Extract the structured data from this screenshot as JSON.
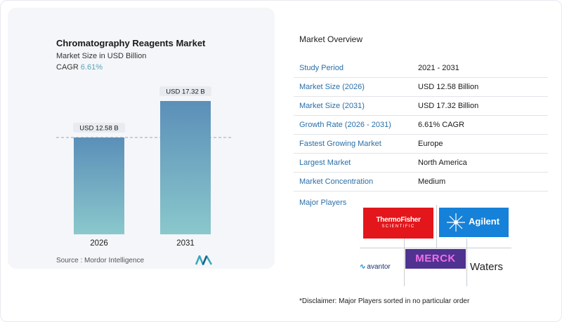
{
  "chart_data": {
    "type": "bar",
    "title": "Chromatography Reagents Market",
    "subtitle": "Market Size in USD Billion",
    "cagr_label": "CAGR",
    "cagr_value": "6.61%",
    "categories": [
      "2026",
      "2031"
    ],
    "values": [
      12.58,
      17.32
    ],
    "data_labels": [
      "USD 12.58 B",
      "USD 17.32 B"
    ],
    "ylim": [
      0,
      17.32
    ],
    "reference_line": 12.58,
    "grid": false,
    "colors": {
      "bar_top": "#5b8fb8",
      "bar_bottom": "#8ac8cc",
      "label_bg": "#e8ebf0",
      "cagr_color": "#5ba4b5"
    }
  },
  "source": "Source :  Mordor Intelligence",
  "overview": {
    "title": "Market Overview",
    "rows": [
      {
        "key": "Study Period",
        "value": "2021 - 2031"
      },
      {
        "key": "Market Size (2026)",
        "value": "USD 12.58 Billion"
      },
      {
        "key": "Market Size (2031)",
        "value": "USD 17.32 Billion"
      },
      {
        "key": "Growth Rate (2026 - 2031)",
        "value": "6.61% CAGR"
      },
      {
        "key": "Fastest Growing Market",
        "value": "Europe"
      },
      {
        "key": "Largest Market",
        "value": "North America"
      },
      {
        "key": "Market Concentration",
        "value": "Medium"
      }
    ],
    "players_label": "Major Players",
    "players": {
      "thermo_line1": "ThermoFisher",
      "thermo_line2": "SCIENTIFIC",
      "agilent": "Agilent",
      "avantor": "avantor",
      "merck": "MERCK",
      "waters": "Waters"
    },
    "disclaimer": "*Disclaimer: Major Players sorted in no particular order"
  }
}
